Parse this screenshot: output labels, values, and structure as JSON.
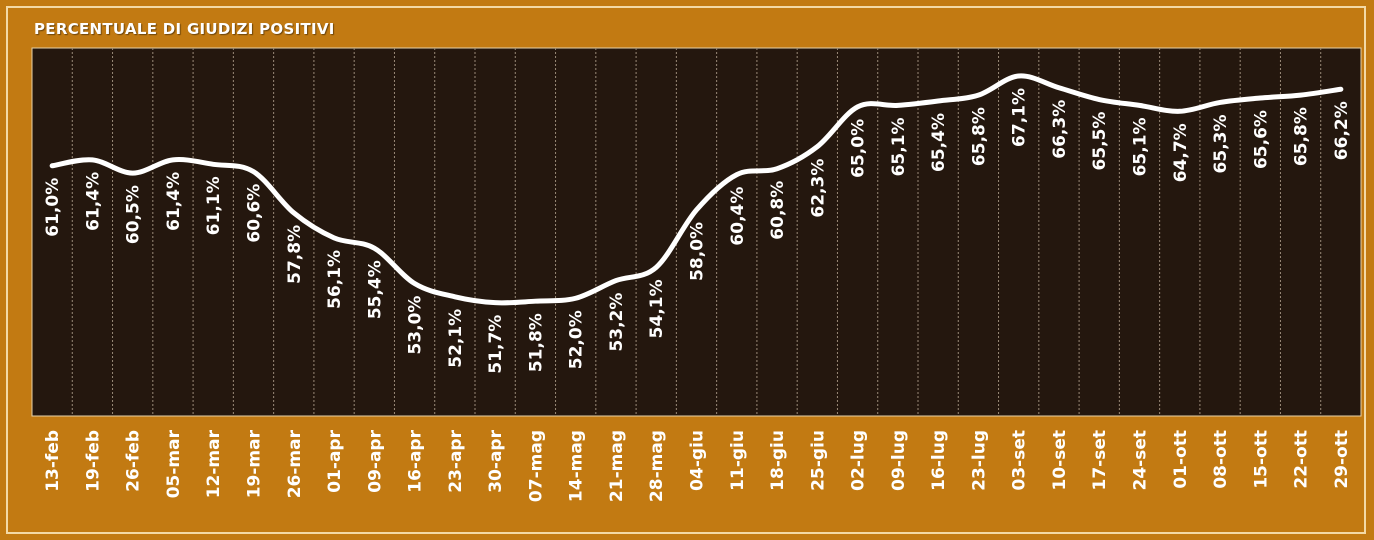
{
  "title": "PERCENTUALE DI GIUDIZI POSITIVI",
  "colors": {
    "background": "#c27a12",
    "plot": "#24170e",
    "line": "#ffffff",
    "grid": "#9a8a78",
    "text": "#ffffff"
  },
  "chart_data": {
    "type": "line",
    "title": "PERCENTUALE DI GIUDIZI POSITIVI",
    "xlabel": "",
    "ylabel": "",
    "grid": "vertical dashed lines",
    "categories": [
      "13-feb",
      "19-feb",
      "26-feb",
      "05-mar",
      "12-mar",
      "19-mar",
      "26-mar",
      "01-apr",
      "09-apr",
      "16-apr",
      "23-apr",
      "30-apr",
      "07-mag",
      "14-mag",
      "21-mag",
      "28-mag",
      "04-giu",
      "11-giu",
      "18-giu",
      "25-giu",
      "02-lug",
      "09-lug",
      "16-lug",
      "23-lug",
      "03-set",
      "10-set",
      "17-set",
      "24-set",
      "01-ott",
      "08-ott",
      "15-ott",
      "22-ott",
      "29-ott"
    ],
    "values": [
      61.0,
      61.4,
      60.5,
      61.4,
      61.1,
      60.6,
      57.8,
      56.1,
      55.4,
      53.0,
      52.1,
      51.7,
      51.8,
      52.0,
      53.2,
      54.1,
      58.0,
      60.4,
      60.8,
      62.3,
      65.0,
      65.1,
      65.4,
      65.8,
      67.1,
      66.3,
      65.5,
      65.1,
      64.7,
      65.3,
      65.6,
      65.8,
      66.2
    ],
    "value_labels": [
      "61,0%",
      "61,4%",
      "60,5%",
      "61,4%",
      "61,1%",
      "60,6%",
      "57,8%",
      "56,1%",
      "55,4%",
      "53,0%",
      "52,1%",
      "51,7%",
      "51,8%",
      "52,0%",
      "53,2%",
      "54,1%",
      "58,0%",
      "60,4%",
      "60,8%",
      "62,3%",
      "65,0%",
      "65,1%",
      "65,4%",
      "65,8%",
      "67,1%",
      "66,3%",
      "65,5%",
      "65,1%",
      "64,7%",
      "65,3%",
      "65,6%",
      "65,8%",
      "66,2%"
    ],
    "ylim": [
      44,
      69
    ]
  }
}
